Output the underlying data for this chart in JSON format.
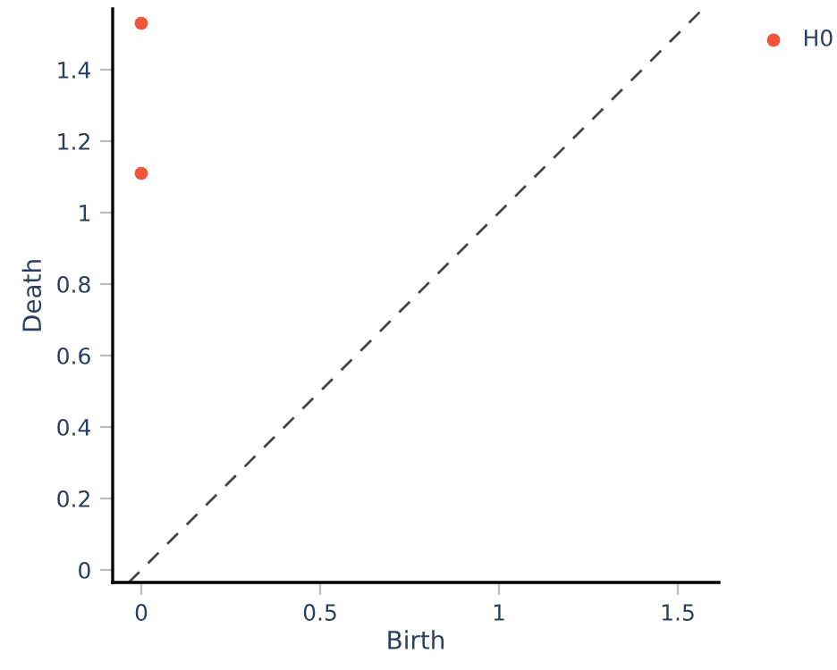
{
  "chart_data": {
    "type": "scatter",
    "xlabel": "Birth",
    "ylabel": "Death",
    "xlim": [
      -0.08,
      1.615
    ],
    "ylim": [
      -0.035,
      1.57
    ],
    "xticks": [
      0,
      0.5,
      1,
      1.5
    ],
    "yticks": [
      0,
      0.2,
      0.4,
      0.6,
      0.8,
      1,
      1.2,
      1.4
    ],
    "grid": false,
    "legend": "top right",
    "marker": "circle",
    "series": [
      {
        "name": "H0",
        "color": "#ef553b",
        "x": [
          0,
          0
        ],
        "values": [
          1.53,
          1.11
        ]
      },
      {
        "type": "line",
        "color": "#444444",
        "line_style": "dashed",
        "marker": "none",
        "x": [
          -0.035,
          1.57
        ],
        "values": [
          -0.035,
          1.57
        ]
      }
    ]
  }
}
